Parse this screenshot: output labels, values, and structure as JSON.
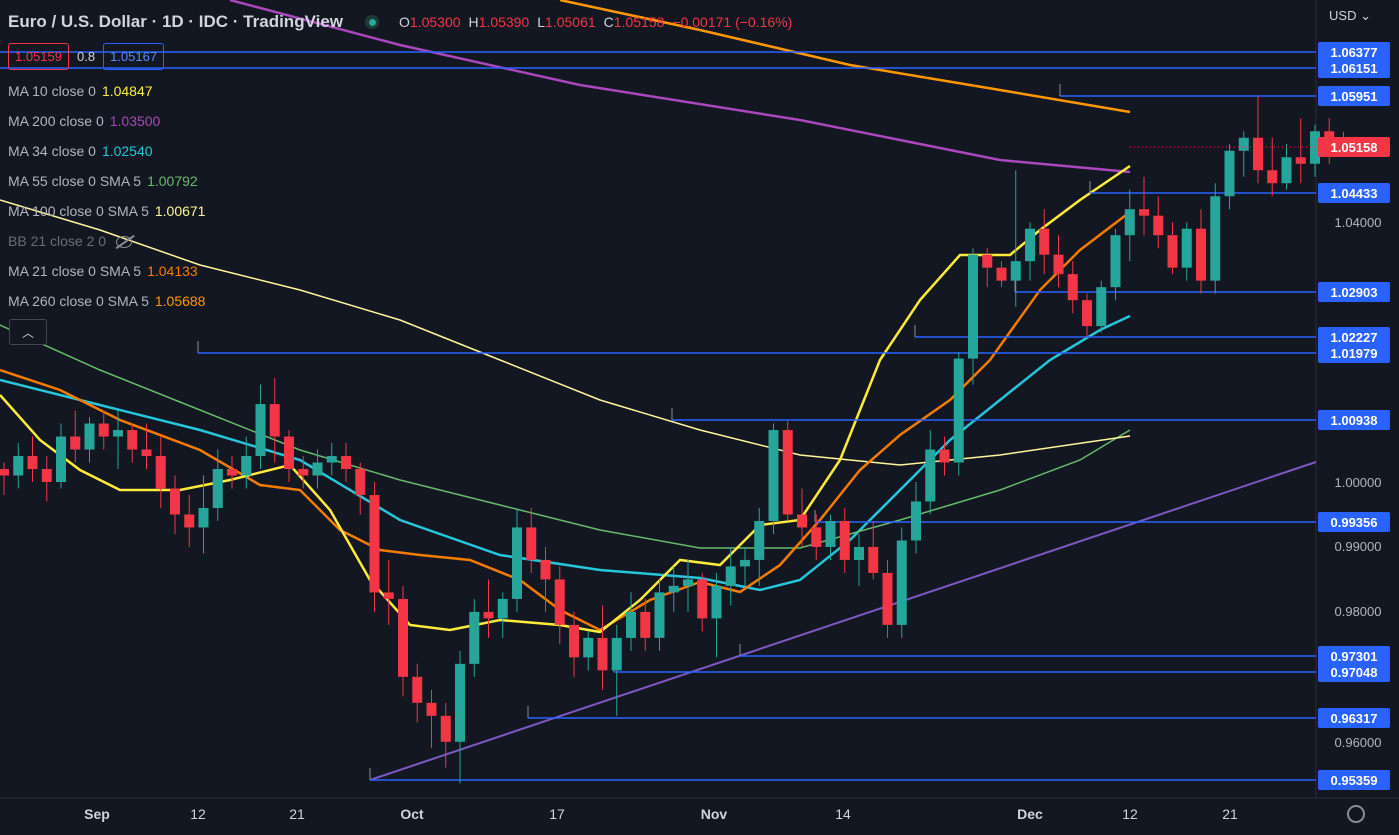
{
  "header": {
    "title": "Euro / U.S. Dollar · 1D · IDC · TradingView",
    "open_label": "O",
    "open": "1.05300",
    "high_label": "H",
    "high": "1.05390",
    "low_label": "L",
    "low": "1.05061",
    "close_label": "C",
    "close": "1.05158",
    "change": "−0.00171 (−0.16%)"
  },
  "quote": {
    "bid": "1.05159",
    "spread": "0.8",
    "ask": "1.05167"
  },
  "indicators": [
    {
      "name": "MA 10 close 0",
      "value": "1.04847",
      "color": "#ffeb3b"
    },
    {
      "name": "MA 200 close 0",
      "value": "1.03500",
      "color": "#ab47bc"
    },
    {
      "name": "MA 34 close 0",
      "value": "1.02540",
      "color": "#26c6da"
    },
    {
      "name": "MA 55 close 0 SMA 5",
      "value": "1.00792",
      "color": "#66bb6a"
    },
    {
      "name": "MA 100 close 0 SMA 5",
      "value": "1.00671",
      "color": "#fff59d"
    },
    {
      "name": "BB 21 close 2 0",
      "value": "",
      "color": "#6a6d78"
    },
    {
      "name": "MA 21 close 0 SMA 5",
      "value": "1.04133",
      "color": "#f57c00"
    },
    {
      "name": "MA 260 close 0 SMA 5",
      "value": "1.05688",
      "color": "#ff9800"
    }
  ],
  "currency_menu": "USD",
  "collapse_icon": "chevron-up-icon",
  "settings_icon": "gear-icon",
  "chart_data": {
    "type": "candlestick",
    "colors": {
      "up": "#26a69a",
      "down": "#f23645",
      "level": "#2962ff",
      "trend": "#7e57c2"
    },
    "y_axis_ticks": [
      "0.96000",
      "0.98000",
      "0.99000",
      "1.00000",
      "1.04000"
    ],
    "x_axis_ticks": [
      "Sep",
      "12",
      "21",
      "Oct",
      "17",
      "Nov",
      "14",
      "Dec",
      "12",
      "21"
    ],
    "horizontal_levels": [
      "1.06377",
      "1.06151",
      "1.05951",
      "1.04433",
      "1.02903",
      "1.02227",
      "1.01979",
      "1.00938",
      "0.99356",
      "0.97301",
      "0.97048",
      "0.96317",
      "0.95359"
    ],
    "last_price": "1.05158",
    "candles": [
      [
        1.002,
        1.003,
        0.998,
        1.001
      ],
      [
        1.001,
        1.006,
        0.999,
        1.004
      ],
      [
        1.004,
        1.007,
        1.0,
        1.002
      ],
      [
        1.002,
        1.004,
        0.997,
        1.0
      ],
      [
        1.0,
        1.009,
        0.999,
        1.007
      ],
      [
        1.007,
        1.011,
        1.003,
        1.005
      ],
      [
        1.005,
        1.01,
        1.003,
        1.009
      ],
      [
        1.009,
        1.011,
        1.005,
        1.007
      ],
      [
        1.007,
        1.011,
        1.002,
        1.008
      ],
      [
        1.008,
        1.009,
        1.003,
        1.005
      ],
      [
        1.005,
        1.009,
        1.002,
        1.004
      ],
      [
        1.004,
        1.007,
        0.996,
        0.999
      ],
      [
        0.999,
        1.001,
        0.992,
        0.995
      ],
      [
        0.995,
        0.998,
        0.99,
        0.993
      ],
      [
        0.993,
        1.001,
        0.989,
        0.996
      ],
      [
        0.996,
        1.005,
        0.994,
        1.002
      ],
      [
        1.002,
        1.004,
        0.999,
        1.001
      ],
      [
        1.001,
        1.007,
        0.999,
        1.004
      ],
      [
        1.004,
        1.015,
        1.002,
        1.012
      ],
      [
        1.012,
        1.016,
        1.003,
        1.007
      ],
      [
        1.007,
        1.008,
        1.0,
        1.002
      ],
      [
        1.002,
        1.004,
        0.999,
        1.001
      ],
      [
        1.001,
        1.005,
        0.999,
        1.003
      ],
      [
        1.003,
        1.006,
        1.001,
        1.004
      ],
      [
        1.004,
        1.006,
        1.0,
        1.002
      ],
      [
        1.002,
        1.003,
        0.995,
        0.998
      ],
      [
        0.998,
        1.0,
        0.98,
        0.983
      ],
      [
        0.983,
        0.988,
        0.978,
        0.982
      ],
      [
        0.982,
        0.984,
        0.967,
        0.97
      ],
      [
        0.97,
        0.972,
        0.963,
        0.966
      ],
      [
        0.966,
        0.968,
        0.959,
        0.964
      ],
      [
        0.964,
        0.966,
        0.956,
        0.96
      ],
      [
        0.96,
        0.974,
        0.9536,
        0.972
      ],
      [
        0.972,
        0.982,
        0.97,
        0.98
      ],
      [
        0.98,
        0.985,
        0.976,
        0.979
      ],
      [
        0.979,
        0.983,
        0.976,
        0.982
      ],
      [
        0.982,
        0.996,
        0.98,
        0.993
      ],
      [
        0.993,
        0.996,
        0.986,
        0.988
      ],
      [
        0.988,
        0.99,
        0.98,
        0.985
      ],
      [
        0.985,
        0.987,
        0.975,
        0.978
      ],
      [
        0.978,
        0.98,
        0.97,
        0.973
      ],
      [
        0.973,
        0.977,
        0.971,
        0.976
      ],
      [
        0.976,
        0.981,
        0.968,
        0.971
      ],
      [
        0.971,
        0.978,
        0.964,
        0.976
      ],
      [
        0.976,
        0.983,
        0.974,
        0.98
      ],
      [
        0.98,
        0.982,
        0.974,
        0.976
      ],
      [
        0.976,
        0.985,
        0.974,
        0.983
      ],
      [
        0.983,
        0.987,
        0.98,
        0.984
      ],
      [
        0.984,
        0.988,
        0.98,
        0.985
      ],
      [
        0.985,
        0.986,
        0.977,
        0.979
      ],
      [
        0.979,
        0.986,
        0.973,
        0.984
      ],
      [
        0.984,
        0.99,
        0.981,
        0.987
      ],
      [
        0.987,
        0.99,
        0.984,
        0.988
      ],
      [
        0.988,
        0.996,
        0.984,
        0.994
      ],
      [
        0.994,
        1.009,
        0.992,
        1.008
      ],
      [
        1.008,
        1.0094,
        0.994,
        0.995
      ],
      [
        0.995,
        0.999,
        0.99,
        0.993
      ],
      [
        0.993,
        0.995,
        0.988,
        0.99
      ],
      [
        0.99,
        0.995,
        0.988,
        0.994
      ],
      [
        0.994,
        0.996,
        0.986,
        0.988
      ],
      [
        0.988,
        0.992,
        0.984,
        0.99
      ],
      [
        0.99,
        0.994,
        0.985,
        0.986
      ],
      [
        0.986,
        0.988,
        0.976,
        0.978
      ],
      [
        0.978,
        0.993,
        0.976,
        0.991
      ],
      [
        0.991,
        1.0,
        0.989,
        0.997
      ],
      [
        0.997,
        1.008,
        0.995,
        1.005
      ],
      [
        1.005,
        1.007,
        1.001,
        1.003
      ],
      [
        1.003,
        1.02,
        1.001,
        1.019
      ],
      [
        1.019,
        1.036,
        1.015,
        1.035
      ],
      [
        1.035,
        1.036,
        1.03,
        1.033
      ],
      [
        1.033,
        1.034,
        1.03,
        1.031
      ],
      [
        1.031,
        1.048,
        1.027,
        1.034
      ],
      [
        1.034,
        1.04,
        1.031,
        1.039
      ],
      [
        1.039,
        1.042,
        1.032,
        1.035
      ],
      [
        1.035,
        1.038,
        1.03,
        1.032
      ],
      [
        1.032,
        1.034,
        1.026,
        1.028
      ],
      [
        1.028,
        1.029,
        1.0223,
        1.024
      ],
      [
        1.024,
        1.031,
        1.023,
        1.03
      ],
      [
        1.03,
        1.039,
        1.028,
        1.038
      ],
      [
        1.038,
        1.045,
        1.034,
        1.042
      ],
      [
        1.042,
        1.047,
        1.038,
        1.041
      ],
      [
        1.041,
        1.044,
        1.036,
        1.038
      ],
      [
        1.038,
        1.04,
        1.032,
        1.033
      ],
      [
        1.033,
        1.04,
        1.031,
        1.039
      ],
      [
        1.039,
        1.042,
        1.029,
        1.031
      ],
      [
        1.031,
        1.046,
        1.029,
        1.044
      ],
      [
        1.044,
        1.052,
        1.042,
        1.051
      ],
      [
        1.051,
        1.054,
        1.047,
        1.053
      ],
      [
        1.053,
        1.0595,
        1.046,
        1.048
      ],
      [
        1.048,
        1.053,
        1.044,
        1.046
      ],
      [
        1.046,
        1.052,
        1.045,
        1.05
      ],
      [
        1.05,
        1.056,
        1.046,
        1.049
      ],
      [
        1.049,
        1.055,
        1.047,
        1.054
      ],
      [
        1.054,
        1.056,
        1.049,
        1.053
      ],
      [
        1.053,
        1.0539,
        1.0506,
        1.0516
      ]
    ]
  }
}
